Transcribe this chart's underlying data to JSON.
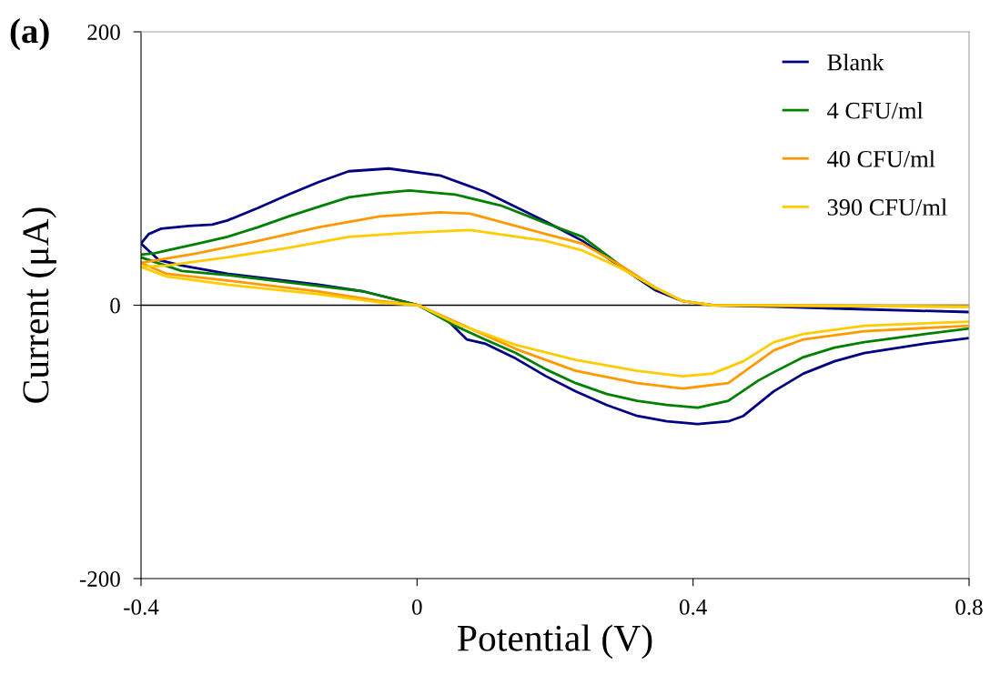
{
  "chart_data": {
    "type": "line",
    "xlabel": "Potential (V)",
    "ylabel": "Current (μA)",
    "annotations": [
      "(a)"
    ],
    "xlim": [
      -0.4,
      0.8
    ],
    "xticks": [
      -0.4,
      0,
      0.4,
      0.8
    ],
    "ylim": [
      -200,
      200
    ],
    "yticks": [
      -200,
      0,
      200
    ],
    "ref_lines": [
      {
        "axis": "y",
        "value": 0,
        "color": "#000000"
      }
    ],
    "grid": false,
    "legend": "top right",
    "marker": "none",
    "line_style": "solid",
    "series": [
      {
        "name": "Blank",
        "color": "#000080",
        "x": [
          -0.4,
          -0.374,
          -0.341,
          -0.275,
          -0.209,
          -0.143,
          -0.077,
          -0.037,
          0.002,
          0.046,
          0.072,
          0.098,
          0.143,
          0.187,
          0.23,
          0.275,
          0.319,
          0.362,
          0.407,
          0.451,
          0.473,
          0.517,
          0.56,
          0.605,
          0.648,
          0.737,
          0.8
        ],
        "values": [
          45,
          33,
          29,
          23,
          19,
          15,
          10,
          5,
          0,
          -12,
          -25,
          -28,
          -39,
          -52,
          -63,
          -73,
          -81,
          -85,
          -87,
          -85,
          -81,
          -63,
          -50,
          -41,
          -35,
          -28,
          -24
        ]
      },
      {
        "color": "#000080",
        "x": [
          0.8,
          0.648,
          0.517,
          0.428,
          0.385,
          0.345,
          0.292,
          0.24,
          0.187,
          0.098,
          0.033,
          -0.041,
          -0.099,
          -0.143,
          -0.186,
          -0.231,
          -0.275,
          -0.297,
          -0.331,
          -0.371,
          -0.389,
          -0.397,
          -0.4
        ],
        "values": [
          -5,
          -3,
          -1,
          0,
          3,
          11,
          29,
          47,
          61,
          83,
          95,
          100,
          98,
          90,
          81,
          71,
          62,
          59,
          58,
          56,
          52,
          47,
          45
        ]
      },
      {
        "name": "4 CFU/ml",
        "color": "#008000",
        "x": [
          -0.4,
          -0.341,
          -0.275,
          -0.209,
          -0.077,
          0.002,
          0.055,
          0.098,
          0.143,
          0.187,
          0.23,
          0.275,
          0.319,
          0.362,
          0.407,
          0.451,
          0.495,
          0.517,
          0.56,
          0.605,
          0.648,
          0.737,
          0.8
        ],
        "values": [
          35,
          25,
          22,
          18,
          10,
          0,
          -15,
          -25,
          -35,
          -47,
          -57,
          -65,
          -70,
          -73,
          -75,
          -70,
          -55,
          -49,
          -38,
          -31,
          -27,
          -21,
          -17
        ]
      },
      {
        "color": "#008000",
        "x": [
          0.345,
          0.292,
          0.24,
          0.187,
          0.121,
          0.055,
          -0.011,
          -0.054,
          -0.099,
          -0.143,
          -0.186,
          -0.231,
          -0.275,
          -0.318,
          -0.363,
          -0.38,
          -0.4
        ],
        "values": [
          12,
          30,
          50,
          60,
          73,
          81,
          84,
          82,
          79,
          72,
          65,
          57,
          50,
          45,
          40,
          38,
          37
        ]
      },
      {
        "name": "40 CFU/ml",
        "color": "#ff9900",
        "x": [
          -0.4,
          -0.363,
          -0.275,
          -0.143,
          -0.054,
          0.002,
          0.055,
          0.143,
          0.23,
          0.319,
          0.385,
          0.451,
          0.517,
          0.56,
          0.648,
          0.8
        ],
        "values": [
          31,
          23,
          18,
          10,
          3,
          0,
          -12,
          -32,
          -48,
          -57,
          -61,
          -57,
          -33,
          -25,
          -19,
          -15
        ]
      },
      {
        "color": "#ff9900",
        "x": [
          0.8,
          0.428,
          0.385,
          0.345,
          0.292,
          0.24,
          0.187,
          0.077,
          0.033,
          -0.054,
          -0.143,
          -0.231,
          -0.318,
          -0.4
        ],
        "values": [
          -1,
          0,
          3,
          13,
          30,
          45,
          52,
          67,
          68,
          65,
          57,
          47,
          38,
          31
        ]
      },
      {
        "name": "390 CFU/ml",
        "color": "#ffcc00",
        "x": [
          -0.4,
          -0.363,
          -0.275,
          -0.143,
          -0.054,
          0.002,
          0.055,
          0.143,
          0.23,
          0.319,
          0.385,
          0.428,
          0.473,
          0.517,
          0.56,
          0.648,
          0.8
        ],
        "values": [
          28,
          21,
          15,
          8,
          2,
          0,
          -13,
          -29,
          -40,
          -48,
          -52,
          -50,
          -41,
          -27,
          -21,
          -15,
          -12
        ]
      },
      {
        "color": "#ffcc00",
        "x": [
          0.8,
          0.428,
          0.385,
          0.345,
          0.292,
          0.24,
          0.187,
          0.077,
          -0.011,
          -0.099,
          -0.186,
          -0.275,
          -0.363,
          -0.4
        ],
        "values": [
          -1,
          0,
          3,
          13,
          28,
          40,
          47,
          55,
          53,
          50,
          42,
          35,
          29,
          28
        ]
      }
    ]
  }
}
